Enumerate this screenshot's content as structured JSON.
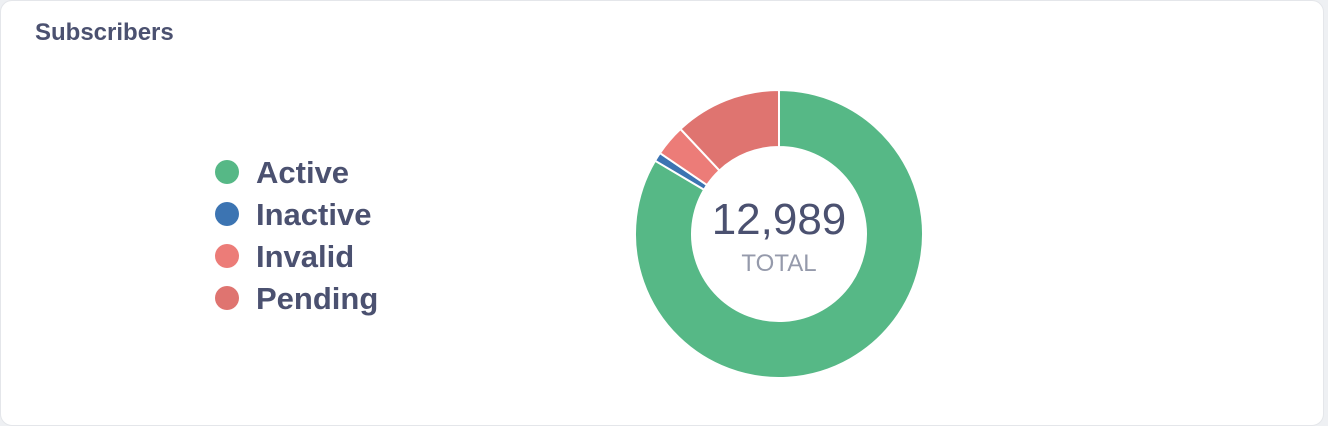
{
  "title": "Subscribers",
  "chart_data": {
    "type": "donut",
    "categories": [
      "Active",
      "Inactive",
      "Invalid",
      "Pending"
    ],
    "values": [
      10846,
      130,
      455,
      1558
    ],
    "colors": [
      "#56b886",
      "#3c74b2",
      "#ec7c78",
      "#df7470"
    ],
    "center_value": {
      "value": 12989,
      "label": "12,989"
    },
    "center_caption": "TOTAL"
  }
}
